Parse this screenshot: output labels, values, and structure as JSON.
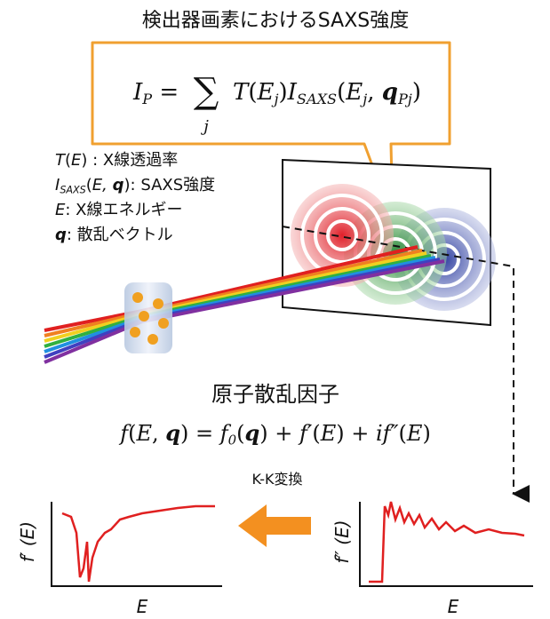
{
  "title": "検出器画素におけるSAXS強度",
  "equation": {
    "left": [
      {
        "text": "I",
        "style": "i"
      },
      {
        "text": "P",
        "style": "sub"
      },
      {
        "text": " = ",
        "style": "n"
      }
    ],
    "sum": "∑",
    "index": "j",
    "right": [
      {
        "text": "T",
        "style": "i"
      },
      {
        "text": "(",
        "style": "n"
      },
      {
        "text": "E",
        "style": "i"
      },
      {
        "text": "j",
        "style": "sub"
      },
      {
        "text": ")",
        "style": "n"
      },
      {
        "text": "I",
        "style": "i"
      },
      {
        "text": "SAXS",
        "style": "sub"
      },
      {
        "text": "(",
        "style": "n"
      },
      {
        "text": "E",
        "style": "i"
      },
      {
        "text": "j",
        "style": "sub"
      },
      {
        "text": ", ",
        "style": "n"
      },
      {
        "text": "q",
        "style": "b"
      },
      {
        "text": "Pj",
        "style": "sub"
      },
      {
        "text": ")",
        "style": "n"
      }
    ]
  },
  "legend": [
    [
      {
        "text": "T",
        "style": "i"
      },
      {
        "text": "(",
        "style": "n"
      },
      {
        "text": "E",
        "style": "i"
      },
      {
        "text": ") : X線透過率",
        "style": "n"
      }
    ],
    [
      {
        "text": "I",
        "style": "i"
      },
      {
        "text": "SAXS",
        "style": "sub"
      },
      {
        "text": "(",
        "style": "n"
      },
      {
        "text": "E, ",
        "style": "i"
      },
      {
        "text": "q",
        "style": "b"
      },
      {
        "text": "): SAXS強度",
        "style": "n"
      }
    ],
    [
      {
        "text": "E",
        "style": "i"
      },
      {
        "text": ": X線エネルギー",
        "style": "n"
      }
    ],
    [
      {
        "text": "q",
        "style": "b"
      },
      {
        "text": ": 散乱ベクトル",
        "style": "n"
      }
    ]
  ],
  "factor_title": "原子散乱因子",
  "factor_equation": [
    {
      "text": "f",
      "style": "i"
    },
    {
      "text": "(",
      "style": "n"
    },
    {
      "text": "E",
      "style": "i"
    },
    {
      "text": ", ",
      "style": "n"
    },
    {
      "text": "q",
      "style": "b"
    },
    {
      "text": ") = ",
      "style": "n"
    },
    {
      "text": "f",
      "style": "i"
    },
    {
      "text": "0",
      "style": "sub"
    },
    {
      "text": "(",
      "style": "n"
    },
    {
      "text": "q",
      "style": "b"
    },
    {
      "text": ") + ",
      "style": "n"
    },
    {
      "text": "f′",
      "style": "i"
    },
    {
      "text": "(",
      "style": "n"
    },
    {
      "text": "E",
      "style": "i"
    },
    {
      "text": ") + ",
      "style": "n"
    },
    {
      "text": "if″",
      "style": "i"
    },
    {
      "text": "(",
      "style": "n"
    },
    {
      "text": "E",
      "style": "i"
    },
    {
      "text": ")",
      "style": "n"
    }
  ],
  "transform_label": "K-K変換",
  "left_plot": {
    "ylabel": "f′ (E)",
    "xlabel": "E"
  },
  "right_plot": {
    "ylabel": "f″ (E)",
    "xlabel": "E"
  }
}
